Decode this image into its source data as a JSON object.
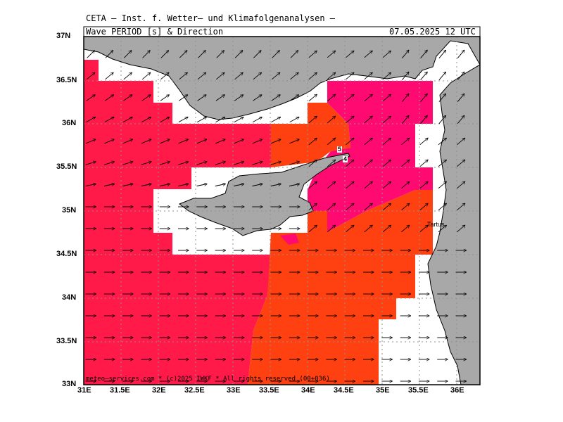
{
  "header": {
    "institute": "CETA – Inst. f. Wetter– und Klimafolgenanalysen –",
    "parameter": "Wave_PERIOD_[s]_&_Direction",
    "datetime": "07.05.2025 12 UTC"
  },
  "axes": {
    "lat_labels": [
      "37N",
      "36.5N",
      "36N",
      "35.5N",
      "35N",
      "34.5N",
      "34N",
      "33.5N",
      "33N"
    ],
    "lon_labels": [
      "31E",
      "31.5E",
      "32E",
      "32.5E",
      "33E",
      "33.5E",
      "34E",
      "34.5E",
      "35E",
      "35.5E",
      "36E"
    ]
  },
  "map_data": {
    "lon_range": [
      31,
      36.3
    ],
    "lat_range": [
      33,
      37
    ],
    "grid_lines": true,
    "contour_labels": [
      "5",
      "4"
    ],
    "city": "Tartus",
    "colors": {
      "crimson": "#ff1a4a",
      "orange": "#ff4010",
      "magenta": "#ff0a70",
      "land": "#a8a8a8",
      "nodata": "#ffffff"
    }
  },
  "footer": {
    "credit": "meteo–services.com * (c)2025 IWKF * All rights reserved (00+036)"
  }
}
